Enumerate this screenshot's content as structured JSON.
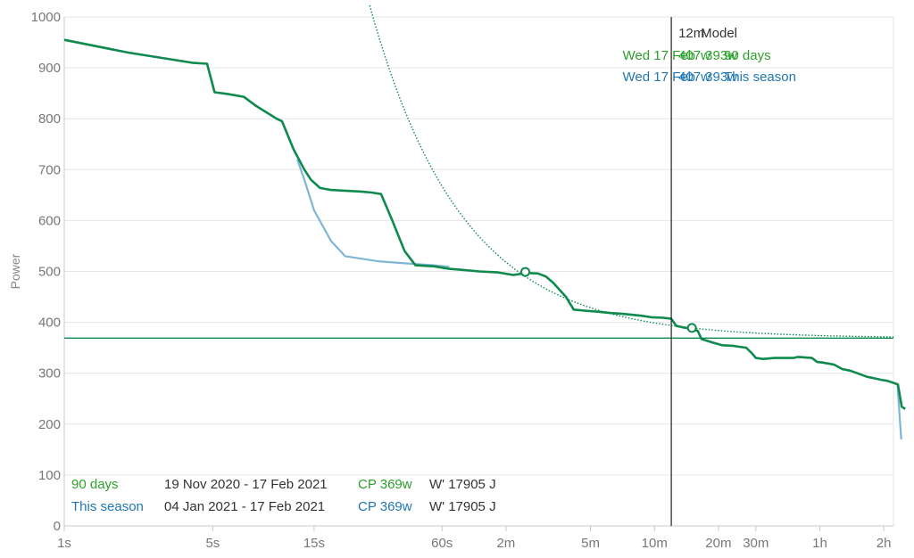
{
  "colors": {
    "series_90": "#0e8a4e",
    "series_season": "#7fb6d6",
    "green_text": "#2ca02c",
    "blue_text": "#1f77b4",
    "grid": "#e6e6e6",
    "axis": "#c8c8c8",
    "cp_line": "#0e8a4e",
    "cursor": "#222222",
    "dark_text": "#333333"
  },
  "chart_data": {
    "type": "line",
    "xscale": "log",
    "xlim_seconds": [
      1,
      8000
    ],
    "ylim": [
      0,
      1000
    ],
    "ylabel": "Power",
    "yticks": [
      0,
      100,
      200,
      300,
      400,
      500,
      600,
      700,
      800,
      900,
      1000
    ],
    "xticks": [
      {
        "label": "1s",
        "seconds": 1
      },
      {
        "label": "5s",
        "seconds": 5
      },
      {
        "label": "15s",
        "seconds": 15
      },
      {
        "label": "60s",
        "seconds": 60
      },
      {
        "label": "2m",
        "seconds": 120
      },
      {
        "label": "5m",
        "seconds": 300
      },
      {
        "label": "10m",
        "seconds": 600
      },
      {
        "label": "20m",
        "seconds": 1200
      },
      {
        "label": "30m",
        "seconds": 1800
      },
      {
        "label": "1h",
        "seconds": 3600
      },
      {
        "label": "2h",
        "seconds": 7200
      }
    ],
    "grid": true,
    "cp_value": 369,
    "cursor_seconds": 720,
    "model": {
      "cp": 369,
      "w_prime": 17905
    },
    "model_points": [
      {
        "seconds": 148,
        "watts": 499
      },
      {
        "seconds": 900,
        "watts": 389
      }
    ],
    "series": [
      {
        "name": "90 days",
        "points": [
          [
            1,
            955
          ],
          [
            2,
            930
          ],
          [
            4,
            910
          ],
          [
            4.7,
            908
          ],
          [
            5.1,
            852
          ],
          [
            6,
            848
          ],
          [
            7,
            843
          ],
          [
            8,
            825
          ],
          [
            10,
            800
          ],
          [
            10.6,
            795
          ],
          [
            12,
            740
          ],
          [
            13.5,
            700
          ],
          [
            14.5,
            680
          ],
          [
            16,
            664
          ],
          [
            18,
            660
          ],
          [
            25,
            657
          ],
          [
            28,
            655
          ],
          [
            31,
            652
          ],
          [
            35,
            600
          ],
          [
            40,
            540
          ],
          [
            45,
            512
          ],
          [
            55,
            510
          ],
          [
            65,
            505
          ],
          [
            75,
            503
          ],
          [
            90,
            500
          ],
          [
            110,
            498
          ],
          [
            130,
            493
          ],
          [
            150,
            497
          ],
          [
            170,
            496
          ],
          [
            185,
            490
          ],
          [
            200,
            478
          ],
          [
            230,
            450
          ],
          [
            250,
            425
          ],
          [
            280,
            423
          ],
          [
            320,
            421
          ],
          [
            380,
            418
          ],
          [
            420,
            417
          ],
          [
            520,
            413
          ],
          [
            580,
            410
          ],
          [
            660,
            409
          ],
          [
            720,
            407
          ],
          [
            760,
            393
          ],
          [
            820,
            390
          ],
          [
            880,
            388
          ],
          [
            960,
            383
          ],
          [
            1000,
            367
          ],
          [
            1130,
            360
          ],
          [
            1250,
            355
          ],
          [
            1400,
            354
          ],
          [
            1500,
            352
          ],
          [
            1620,
            350
          ],
          [
            1720,
            340
          ],
          [
            1800,
            330
          ],
          [
            1950,
            328
          ],
          [
            2200,
            330
          ],
          [
            2700,
            330
          ],
          [
            2850,
            332
          ],
          [
            3300,
            330
          ],
          [
            3500,
            322
          ],
          [
            3700,
            321
          ],
          [
            4200,
            317
          ],
          [
            4600,
            308
          ],
          [
            5000,
            305
          ],
          [
            5500,
            299
          ],
          [
            6000,
            293
          ],
          [
            6500,
            290
          ],
          [
            7000,
            287
          ],
          [
            7500,
            285
          ],
          [
            8000,
            281
          ],
          [
            8400,
            278
          ],
          [
            8750,
            234
          ],
          [
            9100,
            230
          ]
        ]
      },
      {
        "name": "This season",
        "points": [
          [
            12.5,
            720
          ],
          [
            13.5,
            680
          ],
          [
            15,
            620
          ],
          [
            18,
            560
          ],
          [
            21,
            530
          ],
          [
            25,
            525
          ],
          [
            30,
            520
          ],
          [
            40,
            516
          ],
          [
            55,
            512
          ],
          [
            65,
            509
          ],
          [
            8350,
            280
          ],
          [
            8700,
            170
          ]
        ]
      }
    ],
    "model_curve_label": "Model"
  },
  "cursor_panel": {
    "duration": "12m",
    "model_header": "Model",
    "rows": [
      {
        "watts": "407w",
        "name": "90 days",
        "date": "Wed 17 Feb",
        "model": "393w",
        "color_key": "green_text"
      },
      {
        "watts": "407w",
        "name": "This season",
        "date": "Wed 17 Feb",
        "model": "393w",
        "color_key": "blue_text"
      }
    ]
  },
  "legend": {
    "rows": [
      {
        "name": "90 days",
        "range": "19 Nov 2020  - 17 Feb 2021",
        "cp": "CP 369w",
        "wprime": "W' 17905 J",
        "color_key": "green_text"
      },
      {
        "name": "This season",
        "range": "04 Jan 2021  - 17 Feb 2021",
        "cp": "CP 369w",
        "wprime": "W' 17905 J",
        "color_key": "blue_text"
      }
    ]
  }
}
